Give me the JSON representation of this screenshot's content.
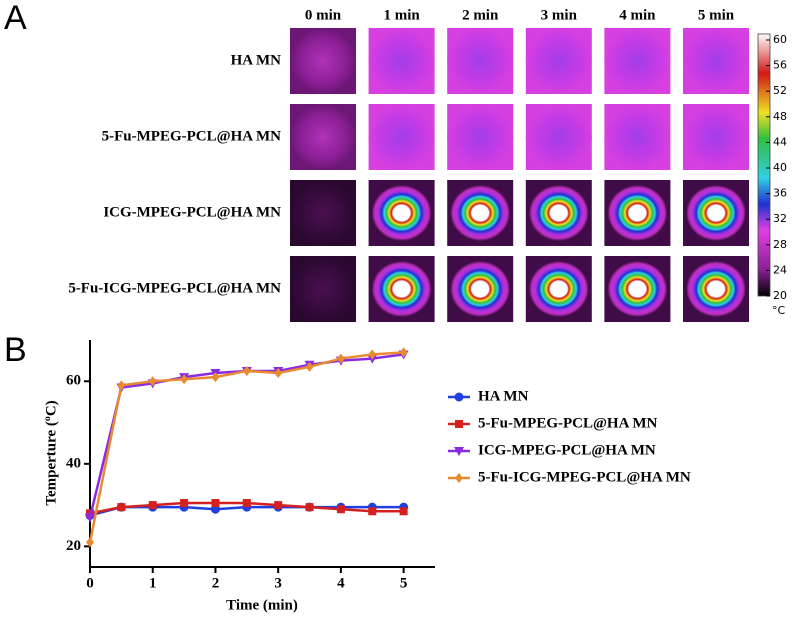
{
  "panel_labels": [
    "A",
    "B"
  ],
  "panel_a": {
    "columns": [
      "0 min",
      "1 min",
      "2 min",
      "3 min",
      "4 min",
      "5 min"
    ],
    "rows": [
      "HA MN",
      "5-Fu-MPEG-PCL@HA MN",
      "ICG-MPEG-PCL@HA MN",
      "5-Fu-ICG-MPEG-PCL@HA MN"
    ],
    "colorbar": {
      "ticks": [
        20,
        24,
        28,
        32,
        36,
        40,
        44,
        48,
        52,
        56,
        60
      ],
      "lim": [
        20,
        60
      ],
      "unit": "°C"
    }
  },
  "chart_data": {
    "type": "line",
    "x": [
      0,
      0.5,
      1,
      1.5,
      2,
      2.5,
      3,
      3.5,
      4,
      4.5,
      5
    ],
    "xlim": [
      0,
      5.5
    ],
    "xticks": [
      0,
      1,
      2,
      3,
      4,
      5
    ],
    "ylim": [
      15,
      70
    ],
    "yticks": [
      20,
      40,
      60
    ],
    "xlabel": "Time (min)",
    "ylabel": "Temperture (ºC)",
    "legend": "right",
    "series": [
      {
        "name": "HA MN",
        "color": "#1f3fe0",
        "marker": "circle",
        "values": [
          27.5,
          29.5,
          29.5,
          29.5,
          29,
          29.5,
          29.5,
          29.5,
          29.5,
          29.5,
          29.5
        ]
      },
      {
        "name": "5-Fu-MPEG-PCL@HA MN",
        "color": "#d42020",
        "marker": "square",
        "values": [
          28,
          29.5,
          30,
          30.5,
          30.5,
          30.5,
          30,
          29.5,
          29,
          28.5,
          28.5
        ]
      },
      {
        "name": "ICG-MPEG-PCL@HA MN",
        "color": "#8a2be2",
        "marker": "triangle",
        "values": [
          27,
          58.5,
          59.5,
          61,
          62,
          62.5,
          62.5,
          64,
          65,
          65.5,
          66.5
        ]
      },
      {
        "name": "5-Fu-ICG-MPEG-PCL@HA MN",
        "color": "#e88a30",
        "marker": "diamond",
        "values": [
          21,
          59,
          60,
          60.5,
          61,
          62.5,
          62,
          63.5,
          65.5,
          66.5,
          67
        ]
      }
    ]
  }
}
